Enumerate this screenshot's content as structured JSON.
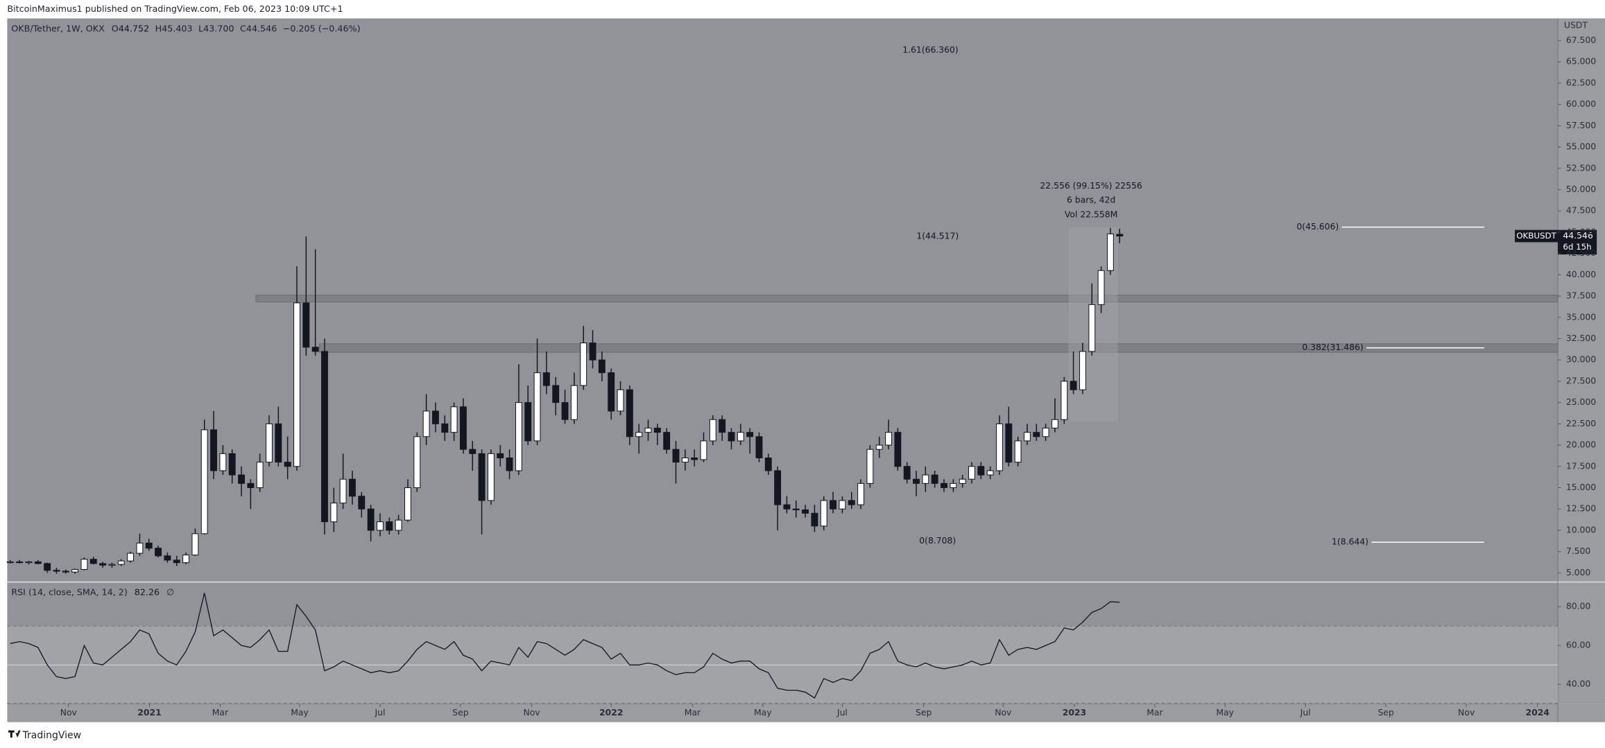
{
  "header": "BitcoinMaximus1 published on TradingView.com, Feb 06, 2023 10:09 UTC+1",
  "footer": "TradingView",
  "legend": {
    "symbol": "OKB/Tether, 1W, OKX",
    "o_label": "O",
    "o_value": "44.752",
    "h_label": "H",
    "h_value": "45.403",
    "l_label": "L",
    "l_value": "43.700",
    "c_label": "C",
    "c_value": "44.546",
    "change": "−0.205 (−0.46%)"
  },
  "annotations": {
    "fib_ext": "1.61(66.360)",
    "measure_change": "22.556 (99.15%) 22556",
    "measure_bars": "6 bars, 42d",
    "measure_vol": "Vol 22.558M",
    "fib_a_one": "1(44.517)",
    "fib_a_zero": "0(8.708)",
    "fib_b_zero": "0(45.606)",
    "fib_b_382": "0.382(31.486)",
    "fib_b_one": "1(8.644)"
  },
  "price_tag": {
    "symbol": "OKBUSDT",
    "price": "44.546",
    "countdown": "6d 15h"
  },
  "chart_data": {
    "type": "candlestick",
    "y_axis_label": "USDT",
    "bullish_color": "#ffffff",
    "bearish_color": "#131722",
    "ylim": [
      4.04,
      70.1
    ],
    "yticks": [
      {
        "value": 5,
        "label": "5.000"
      },
      {
        "value": 7.5,
        "label": "7.500"
      },
      {
        "value": 10,
        "label": "10.000"
      },
      {
        "value": 12.5,
        "label": "12.500"
      },
      {
        "value": 15,
        "label": "15.000"
      },
      {
        "value": 17.5,
        "label": "17.500"
      },
      {
        "value": 20,
        "label": "20.000"
      },
      {
        "value": 22.5,
        "label": "22.500"
      },
      {
        "value": 25,
        "label": "25.000"
      },
      {
        "value": 27.5,
        "label": "27.500"
      },
      {
        "value": 30,
        "label": "30.000"
      },
      {
        "value": 32.5,
        "label": "32.500"
      },
      {
        "value": 35,
        "label": "35.000"
      },
      {
        "value": 37.5,
        "label": "37.500"
      },
      {
        "value": 40,
        "label": "40.000"
      },
      {
        "value": 42.5,
        "label": "42.500"
      },
      {
        "value": 45,
        "label": "45.000"
      },
      {
        "value": 47.5,
        "label": "47.500"
      },
      {
        "value": 50,
        "label": "50.000"
      },
      {
        "value": 52.5,
        "label": "52.500"
      },
      {
        "value": 55,
        "label": "55.000"
      },
      {
        "value": 57.5,
        "label": "57.500"
      },
      {
        "value": 60,
        "label": "60.000"
      },
      {
        "value": 62.5,
        "label": "62.500"
      },
      {
        "value": 65,
        "label": "65.000"
      },
      {
        "value": 67.5,
        "label": "67.500"
      }
    ],
    "xlim": [
      -0.33,
      167.4
    ],
    "xticks": [
      {
        "value": 6.3,
        "label": "Nov"
      },
      {
        "value": 15.06,
        "label": "2021"
      },
      {
        "value": 22.7,
        "label": "Mar"
      },
      {
        "value": 31.3,
        "label": "May"
      },
      {
        "value": 40.0,
        "label": "Jul"
      },
      {
        "value": 48.7,
        "label": "Sep"
      },
      {
        "value": 56.4,
        "label": "Nov"
      },
      {
        "value": 65.0,
        "label": "2022"
      },
      {
        "value": 73.8,
        "label": "Mar"
      },
      {
        "value": 81.4,
        "label": "May"
      },
      {
        "value": 90.0,
        "label": "Jul"
      },
      {
        "value": 98.8,
        "label": "Sep"
      },
      {
        "value": 107.4,
        "label": "Nov"
      },
      {
        "value": 115.1,
        "label": "2023"
      },
      {
        "value": 123.8,
        "label": "Mar"
      },
      {
        "value": 131.4,
        "label": "May"
      },
      {
        "value": 140.1,
        "label": "Jul"
      },
      {
        "value": 148.8,
        "label": "Sep"
      },
      {
        "value": 157.5,
        "label": "Nov"
      },
      {
        "value": 165.2,
        "label": "2024"
      }
    ],
    "zones": [
      [
        36.8,
        37.6
      ],
      [
        30.9,
        31.9
      ]
    ],
    "candles": [
      [
        6.3,
        6.5,
        6.1,
        6.3
      ],
      [
        6.3,
        6.5,
        6.1,
        6.2
      ],
      [
        6.2,
        6.4,
        6.0,
        6.3
      ],
      [
        6.3,
        6.5,
        6.0,
        6.1
      ],
      [
        6.1,
        6.2,
        5.0,
        5.3
      ],
      [
        5.3,
        5.6,
        4.9,
        5.2
      ],
      [
        5.2,
        5.4,
        4.9,
        5.1
      ],
      [
        5.1,
        5.5,
        4.9,
        5.4
      ],
      [
        5.4,
        6.8,
        5.3,
        6.6
      ],
      [
        6.6,
        6.9,
        6.0,
        6.1
      ],
      [
        6.1,
        6.3,
        5.6,
        5.9
      ],
      [
        5.9,
        6.2,
        5.6,
        6.0
      ],
      [
        6.0,
        6.6,
        5.8,
        6.4
      ],
      [
        6.4,
        7.5,
        6.2,
        7.3
      ],
      [
        7.3,
        9.6,
        7.0,
        8.5
      ],
      [
        8.5,
        9.0,
        7.6,
        7.9
      ],
      [
        7.9,
        8.2,
        6.8,
        7.0
      ],
      [
        7.0,
        7.4,
        6.2,
        6.5
      ],
      [
        6.5,
        7.0,
        5.8,
        6.2
      ],
      [
        6.2,
        7.4,
        6.0,
        7.1
      ],
      [
        7.1,
        10.2,
        7.0,
        9.6
      ],
      [
        9.6,
        23.0,
        9.5,
        21.8
      ],
      [
        21.8,
        24.0,
        16.0,
        17.0
      ],
      [
        17.0,
        20.0,
        16.5,
        19.0
      ],
      [
        19.0,
        19.5,
        15.5,
        16.5
      ],
      [
        16.5,
        17.5,
        14.0,
        15.5
      ],
      [
        15.5,
        16.0,
        12.5,
        15.0
      ],
      [
        15.0,
        19.0,
        14.5,
        18.0
      ],
      [
        18.0,
        23.5,
        17.5,
        22.5
      ],
      [
        22.5,
        24.5,
        17.5,
        18.0
      ],
      [
        18.0,
        21.0,
        16.0,
        17.5
      ],
      [
        17.5,
        41.0,
        17.0,
        36.7
      ],
      [
        36.7,
        44.5,
        30.5,
        31.5
      ],
      [
        31.5,
        43.0,
        30.5,
        31.0
      ],
      [
        31.0,
        32.5,
        9.5,
        11.0
      ],
      [
        11.0,
        15.0,
        9.8,
        13.2
      ],
      [
        13.2,
        19.0,
        12.5,
        16.0
      ],
      [
        16.0,
        17.0,
        13.0,
        14.0
      ],
      [
        14.0,
        14.5,
        11.5,
        12.5
      ],
      [
        12.5,
        13.0,
        8.7,
        10.0
      ],
      [
        10.0,
        12.0,
        9.3,
        11.0
      ],
      [
        11.0,
        11.5,
        9.5,
        10.0
      ],
      [
        10.0,
        11.8,
        9.5,
        11.2
      ],
      [
        11.2,
        16.0,
        11.0,
        15.0
      ],
      [
        15.0,
        21.5,
        14.5,
        21.0
      ],
      [
        21.0,
        26.0,
        20.0,
        24.0
      ],
      [
        24.0,
        25.0,
        21.5,
        22.5
      ],
      [
        22.5,
        23.5,
        20.5,
        21.5
      ],
      [
        21.5,
        25.0,
        20.5,
        24.5
      ],
      [
        24.5,
        25.5,
        19.0,
        19.5
      ],
      [
        19.5,
        20.5,
        17.0,
        19.0
      ],
      [
        19.0,
        19.5,
        9.5,
        13.5
      ],
      [
        13.5,
        19.5,
        13.0,
        19.0
      ],
      [
        19.0,
        20.0,
        17.5,
        18.5
      ],
      [
        18.5,
        19.5,
        16.0,
        17.0
      ],
      [
        17.0,
        29.5,
        16.5,
        25.0
      ],
      [
        25.0,
        27.0,
        20.0,
        20.5
      ],
      [
        20.5,
        32.5,
        20.0,
        28.5
      ],
      [
        28.5,
        31.0,
        26.0,
        27.0
      ],
      [
        27.0,
        28.0,
        23.5,
        25.0
      ],
      [
        25.0,
        26.5,
        22.5,
        23.0
      ],
      [
        23.0,
        28.5,
        22.5,
        27.0
      ],
      [
        27.0,
        34.0,
        26.5,
        32.0
      ],
      [
        32.0,
        33.5,
        29.0,
        30.0
      ],
      [
        30.0,
        31.0,
        27.5,
        28.5
      ],
      [
        28.5,
        29.0,
        23.0,
        24.0
      ],
      [
        24.0,
        27.5,
        23.5,
        26.5
      ],
      [
        26.5,
        27.0,
        20.0,
        21.0
      ],
      [
        21.0,
        22.5,
        19.0,
        21.5
      ],
      [
        21.5,
        23.0,
        20.5,
        22.0
      ],
      [
        22.0,
        22.5,
        20.0,
        21.5
      ],
      [
        21.5,
        22.0,
        19.0,
        19.5
      ],
      [
        19.5,
        20.5,
        15.5,
        18.0
      ],
      [
        18.0,
        19.5,
        17.0,
        18.5
      ],
      [
        18.5,
        19.5,
        17.5,
        18.3
      ],
      [
        18.3,
        21.5,
        18.0,
        20.5
      ],
      [
        20.5,
        23.5,
        20.0,
        23.0
      ],
      [
        23.0,
        23.5,
        20.5,
        21.5
      ],
      [
        21.5,
        22.0,
        19.5,
        20.5
      ],
      [
        20.5,
        22.5,
        20.0,
        21.5
      ],
      [
        21.5,
        22.0,
        19.0,
        21.0
      ],
      [
        21.0,
        21.5,
        18.0,
        18.5
      ],
      [
        18.5,
        19.0,
        16.5,
        17.0
      ],
      [
        17.0,
        17.5,
        10.0,
        13.0
      ],
      [
        13.0,
        14.0,
        12.0,
        12.5
      ],
      [
        12.5,
        13.5,
        11.5,
        12.4
      ],
      [
        12.4,
        13.0,
        11.5,
        12.0
      ],
      [
        12.0,
        13.0,
        9.8,
        10.5
      ],
      [
        10.5,
        14.0,
        10.0,
        13.5
      ],
      [
        13.5,
        14.5,
        12.0,
        12.5
      ],
      [
        12.5,
        14.0,
        12.0,
        13.5
      ],
      [
        13.5,
        14.5,
        12.5,
        13.0
      ],
      [
        13.0,
        16.0,
        12.5,
        15.5
      ],
      [
        15.5,
        20.0,
        15.0,
        19.5
      ],
      [
        19.5,
        21.0,
        18.5,
        20.0
      ],
      [
        20.0,
        23.0,
        19.5,
        21.5
      ],
      [
        21.5,
        22.0,
        17.0,
        17.5
      ],
      [
        17.5,
        18.0,
        15.5,
        16.0
      ],
      [
        16.0,
        17.0,
        14.0,
        15.5
      ],
      [
        15.5,
        17.5,
        14.5,
        16.5
      ],
      [
        16.5,
        17.0,
        15.0,
        15.5
      ],
      [
        15.5,
        16.0,
        14.5,
        15.0
      ],
      [
        15.0,
        16.0,
        14.5,
        15.5
      ],
      [
        15.5,
        16.5,
        15.0,
        16.0
      ],
      [
        16.0,
        18.0,
        15.5,
        17.5
      ],
      [
        17.5,
        18.0,
        16.0,
        16.5
      ],
      [
        16.5,
        17.5,
        16.0,
        17.0
      ],
      [
        17.0,
        23.5,
        16.5,
        22.5
      ],
      [
        22.5,
        24.5,
        17.5,
        18.0
      ],
      [
        18.0,
        21.0,
        17.5,
        20.5
      ],
      [
        20.5,
        22.5,
        20.0,
        21.5
      ],
      [
        21.5,
        22.5,
        20.5,
        21.0
      ],
      [
        21.0,
        22.5,
        20.5,
        22.0
      ],
      [
        22.0,
        25.5,
        21.5,
        23.0
      ],
      [
        23.0,
        28.0,
        22.5,
        27.5
      ],
      [
        27.5,
        31.0,
        26.0,
        26.5
      ],
      [
        26.5,
        32.0,
        26.0,
        31.0
      ],
      [
        31.0,
        39.0,
        30.5,
        36.5
      ],
      [
        36.5,
        41.0,
        35.5,
        40.5
      ],
      [
        40.5,
        45.5,
        40.0,
        44.8
      ],
      [
        44.752,
        45.403,
        43.7,
        44.546
      ]
    ],
    "rsi": {
      "title": "RSI (14, close, SMA, 14, 2)",
      "last_label": "82.26",
      "sma_label": "∅",
      "color": "#131722",
      "ylim": [
        30,
        92.1
      ],
      "yticks": [
        {
          "value": 40,
          "label": "40.00"
        },
        {
          "value": 60,
          "label": "60.00"
        },
        {
          "value": 80,
          "label": "80.00"
        }
      ],
      "upper_band": 70,
      "middle_line": 50,
      "lower_band": 30,
      "values": [
        61,
        62,
        61,
        59,
        50,
        44,
        43,
        44,
        60,
        51,
        50,
        54,
        58,
        62,
        68,
        66,
        56,
        52,
        50,
        57,
        67,
        87,
        65,
        68,
        64,
        60,
        59,
        63,
        68,
        57,
        57,
        81,
        75,
        68,
        47,
        49,
        52,
        50,
        48,
        46,
        47,
        46,
        47,
        52,
        58,
        62,
        60,
        58,
        62,
        55,
        53,
        47,
        52,
        51,
        50,
        59,
        54,
        62,
        61,
        58,
        55,
        58,
        63,
        61,
        59,
        53,
        56,
        50,
        50,
        51,
        50,
        47,
        45,
        46,
        46,
        49,
        56,
        53,
        51,
        52,
        52,
        48,
        46,
        38,
        37,
        37,
        36,
        33,
        43,
        41,
        43,
        42,
        47,
        56,
        58,
        62,
        52,
        50,
        49,
        51,
        49,
        48,
        49,
        50,
        52,
        50,
        51,
        63,
        55,
        58,
        59,
        58,
        60,
        62,
        69,
        68,
        72,
        77,
        79,
        82.5,
        82.26
      ]
    }
  }
}
